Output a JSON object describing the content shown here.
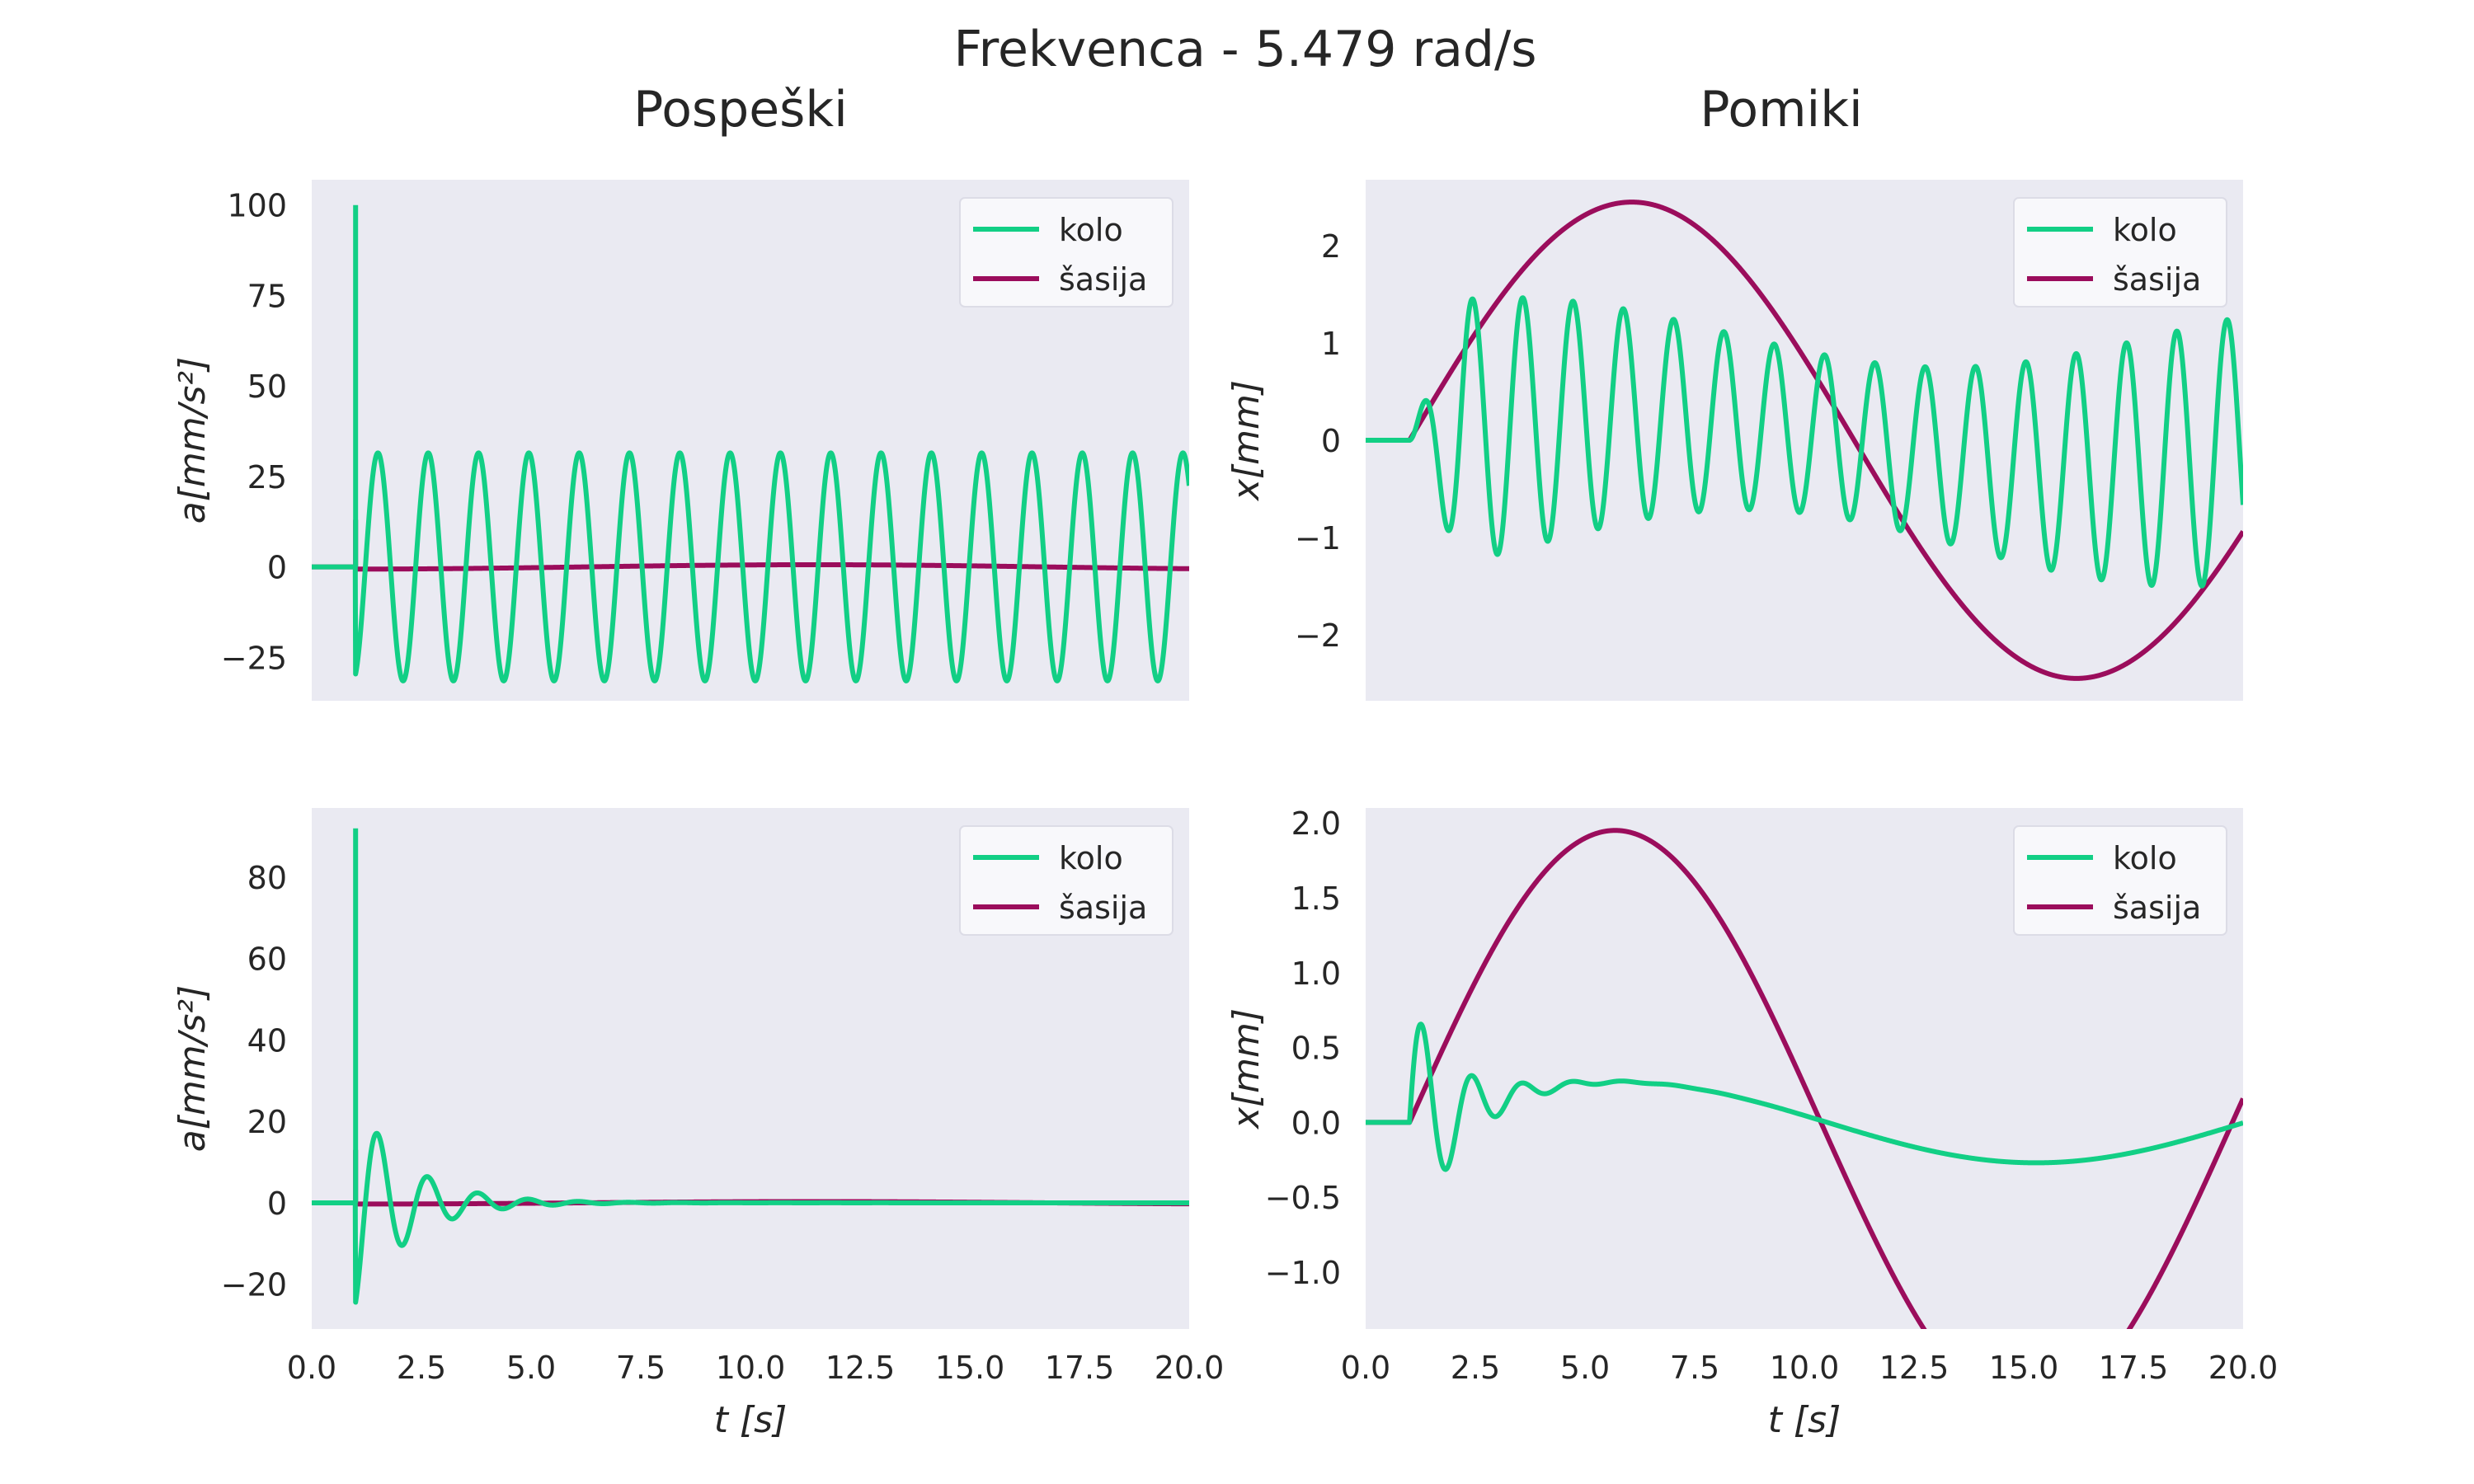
{
  "suptitle": "Frekvenca - 5.479 rad/s",
  "column_titles": [
    "Pospeški",
    "Pomiki"
  ],
  "xlabel": "t [s]",
  "colors": {
    "kolo": "#12cf85",
    "sasija": "#9b0d5c",
    "axes_bg": "#eaeaf2",
    "legend_bg": "#f8f8fb"
  },
  "chart_data": [
    {
      "id": "acc-top",
      "type": "line",
      "ylabel": "a[mm/s²]",
      "xlim": [
        0,
        20
      ],
      "ylim": [
        -37,
        107
      ],
      "xticks": [],
      "yticks": [
        -25,
        0,
        25,
        50,
        75,
        100
      ],
      "grid": false,
      "legend": "top-right",
      "series": [
        {
          "name": "kolo",
          "color": "#12cf85",
          "model": {
            "kind": "accel",
            "spike": 100,
            "amp": 31.5,
            "omega": 5.479,
            "decay": 0,
            "onset": 1,
            "phase": 0.35
          }
        },
        {
          "name": "šasija",
          "color": "#9b0d5c",
          "model": {
            "kind": "accel",
            "spike": 13,
            "amp": 0.6,
            "omega": 0.3,
            "decay": 0,
            "onset": 1,
            "phase": 0
          }
        }
      ]
    },
    {
      "id": "disp-top",
      "type": "line",
      "ylabel": "x[mm]",
      "xlim": [
        0,
        20
      ],
      "ylim": [
        -2.68,
        2.68
      ],
      "xticks": [],
      "yticks": [
        -2,
        -1,
        0,
        1,
        2
      ],
      "grid": false,
      "legend": "top-right",
      "series": [
        {
          "name": "kolo",
          "color": "#12cf85",
          "model": {
            "kind": "forced",
            "osc": 1.1,
            "omega": 5.479,
            "slow": 0.25,
            "slowOmega": 0.31,
            "onset": 1
          }
        },
        {
          "name": "šasija",
          "color": "#9b0d5c",
          "model": {
            "kind": "slow",
            "amp": 2.45,
            "omega": 0.31,
            "onset": 1
          }
        }
      ]
    },
    {
      "id": "acc-bottom",
      "type": "line",
      "ylabel": "a[mm/s²]",
      "xlim": [
        0,
        20
      ],
      "ylim": [
        -31,
        97
      ],
      "xticks": [
        0.0,
        2.5,
        5.0,
        7.5,
        10.0,
        12.5,
        15.0,
        17.5,
        20.0
      ],
      "yticks": [
        -20,
        0,
        20,
        40,
        60,
        80
      ],
      "grid": false,
      "legend": "top-right",
      "series": [
        {
          "name": "kolo",
          "color": "#12cf85",
          "model": {
            "kind": "accel",
            "spike": 92,
            "amp": 26,
            "omega": 5.479,
            "decay": 0.85,
            "onset": 1,
            "phase": 0.35
          }
        },
        {
          "name": "šasija",
          "color": "#9b0d5c",
          "model": {
            "kind": "accel",
            "spike": 13,
            "amp": 0.3,
            "omega": 0.3,
            "decay": 0,
            "onset": 1,
            "phase": 0
          }
        }
      ]
    },
    {
      "id": "disp-bottom",
      "type": "line",
      "ylabel": "x[mm]",
      "xlim": [
        0,
        20
      ],
      "ylim": [
        -1.38,
        2.1
      ],
      "xticks": [
        0.0,
        2.5,
        5.0,
        7.5,
        10.0,
        12.5,
        15.0,
        17.5,
        20.0
      ],
      "yticks": [
        -1.0,
        -0.5,
        0.0,
        0.5,
        1.0,
        1.5,
        2.0
      ],
      "grid": false,
      "legend": "top-right",
      "series": [
        {
          "name": "kolo",
          "color": "#12cf85",
          "model": {
            "kind": "damped",
            "osc": 0.85,
            "omega": 5.479,
            "decay": 1.0,
            "slow": 0.27,
            "slowOmega": 0.33,
            "onset": 1
          }
        },
        {
          "name": "šasija",
          "color": "#9b0d5c",
          "model": {
            "kind": "slow",
            "amp": 1.95,
            "omega": 0.335,
            "onset": 1
          }
        }
      ]
    }
  ]
}
